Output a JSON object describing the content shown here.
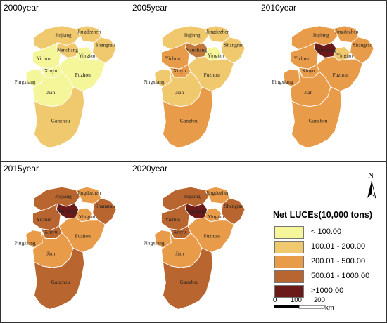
{
  "panels": [
    {
      "year_label": "2000year",
      "colors": {
        "Jiujiang": "#f0c86e",
        "Jingdezhen": "#f0c86e",
        "Shangrao": "#f0c86e",
        "Nanchang": "#f0c86e",
        "Yingtan": "#f5f59a",
        "Yichun": "#f5f59a",
        "Xinyu": "#f5f59a",
        "Pingxiang": "#f5f59a",
        "Jian": "#f5f59a",
        "Fuzhou": "#f5f59a",
        "Ganzhou": "#f0c86e"
      }
    },
    {
      "year_label": "2005year",
      "colors": {
        "Jiujiang": "#f0c86e",
        "Jingdezhen": "#f0c86e",
        "Shangrao": "#f0c86e",
        "Nanchang": "#c27a3c",
        "Yingtan": "#f5f59a",
        "Yichun": "#e89b49",
        "Xinyu": "#e89b49",
        "Pingxiang": "#f0c86e",
        "Jian": "#f0c86e",
        "Fuzhou": "#f0c86e",
        "Ganzhou": "#e89b49"
      }
    },
    {
      "year_label": "2010year",
      "colors": {
        "Jiujiang": "#e89b49",
        "Jingdezhen": "#e89b49",
        "Shangrao": "#e89b49",
        "Nanchang": "#6b1a1a",
        "Yingtan": "#f0c86e",
        "Yichun": "#e89b49",
        "Xinyu": "#e89b49",
        "Pingxiang": "#e89b49",
        "Jian": "#e89b49",
        "Fuzhou": "#e89b49",
        "Ganzhou": "#e89b49"
      }
    },
    {
      "year_label": "2015year",
      "colors": {
        "Jiujiang": "#b8652f",
        "Jingdezhen": "#e89b49",
        "Shangrao": "#b8652f",
        "Nanchang": "#6b1a1a",
        "Yingtan": "#e89b49",
        "Yichun": "#b8652f",
        "Xinyu": "#b8652f",
        "Pingxiang": "#e89b49",
        "Jian": "#e89b49",
        "Fuzhou": "#e89b49",
        "Ganzhou": "#b8652f"
      }
    },
    {
      "year_label": "2020year",
      "colors": {
        "Jiujiang": "#b8652f",
        "Jingdezhen": "#e89b49",
        "Shangrao": "#b8652f",
        "Nanchang": "#6b1a1a",
        "Yingtan": "#e89b49",
        "Yichun": "#b8652f",
        "Xinyu": "#b8652f",
        "Pingxiang": "#e89b49",
        "Jian": "#e89b49",
        "Fuzhou": "#e89b49",
        "Ganzhou": "#b8652f"
      }
    }
  ],
  "city_names": {
    "Jiujiang": "Jiujiang",
    "Jingdezhen": "Jingdezhen",
    "Shangrao": "Shangrao",
    "Nanchang": "Nanchang",
    "Yingtan": "Yingtan",
    "Yichun": "Yichun",
    "Xinyu": "Xinyu",
    "Pingxiang": "Pingxiang",
    "Fuzhou": "Fuzhou",
    "Jian": "Jian",
    "Ganzhou": "Ganzhou"
  },
  "legend": {
    "title": "Net LUCEs(10,000 tons)",
    "items": [
      {
        "label": "< 100.00",
        "color": "#f5f59a"
      },
      {
        "label": "100.01 - 200.00",
        "color": "#f0c86e"
      },
      {
        "label": "200.01 - 500.00",
        "color": "#e89b49"
      },
      {
        "label": "500.01 - 1000.00",
        "color": "#b8652f"
      },
      {
        "label": ">1000.00",
        "color": "#6b1a1a"
      }
    ]
  },
  "north_arrow": {
    "label": "N"
  },
  "scale_bar": {
    "ticks": [
      "0",
      "100",
      "200"
    ],
    "unit": "km"
  }
}
